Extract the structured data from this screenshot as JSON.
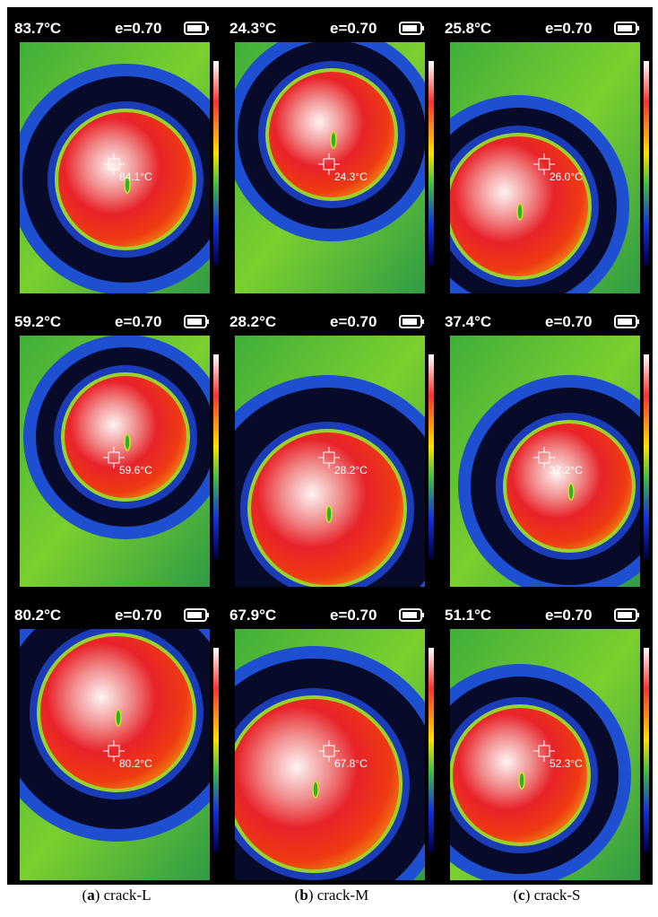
{
  "panels": [
    {
      "temperature": "83.7°C",
      "emissivity": "e=0.70",
      "spot": "84.1°C"
    },
    {
      "temperature": "24.3°C",
      "emissivity": "e=0.70",
      "spot": "24.3°C"
    },
    {
      "temperature": "25.8°C",
      "emissivity": "e=0.70",
      "spot": "26.0°C"
    },
    {
      "temperature": "59.2°C",
      "emissivity": "e=0.70",
      "spot": "59.6°C"
    },
    {
      "temperature": "28.2°C",
      "emissivity": "e=0.70",
      "spot": "28.2°C"
    },
    {
      "temperature": "37.4°C",
      "emissivity": "e=0.70",
      "spot": "37.2°C"
    },
    {
      "temperature": "80.2°C",
      "emissivity": "e=0.70",
      "spot": "80.2°C"
    },
    {
      "temperature": "67.9°C",
      "emissivity": "e=0.70",
      "spot": "67.8°C"
    },
    {
      "temperature": "51.1°C",
      "emissivity": "e=0.70",
      "spot": "52.3°C"
    }
  ],
  "captions": [
    {
      "parts": [
        "(",
        "a",
        ") crack-L"
      ]
    },
    {
      "parts": [
        "(",
        "b",
        ") crack-M"
      ]
    },
    {
      "parts": [
        "(",
        "c",
        ") crack-S"
      ]
    }
  ]
}
